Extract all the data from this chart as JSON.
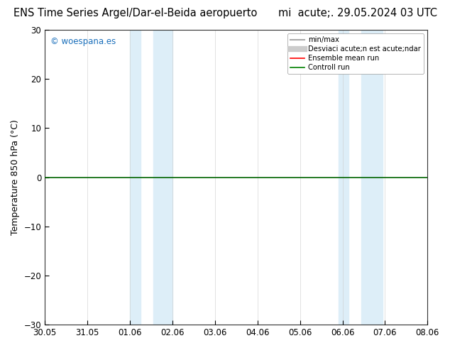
{
  "title": "ENS Time Series Argel/Dar-el-Beida aeropuerto",
  "subtitle": "mi  acute;. 29.05.2024 03 UTC",
  "ylabel": "Temperature 850 hPa (°C)",
  "xlabels": [
    "30.05",
    "31.05",
    "01.06",
    "02.06",
    "03.06",
    "04.06",
    "05.06",
    "06.06",
    "07.06",
    "08.06"
  ],
  "ylim": [
    -30,
    30
  ],
  "yticks": [
    -30,
    -20,
    -10,
    0,
    10,
    20,
    30
  ],
  "shaded_regions": [
    {
      "xstart": 2.0,
      "xend": 2.25,
      "color": "#ddeef8"
    },
    {
      "xstart": 2.55,
      "xend": 3.0,
      "color": "#ddeef8"
    },
    {
      "xstart": 6.9,
      "xend": 7.15,
      "color": "#ddeef8"
    },
    {
      "xstart": 7.45,
      "xend": 7.95,
      "color": "#ddeef8"
    }
  ],
  "hline_y": 0,
  "hline_color": "#006400",
  "hline_lw": 1.2,
  "watermark": "© woespana.es",
  "watermark_color": "#1a6fbb",
  "legend_entries": [
    {
      "label": "min/max",
      "color": "#aaaaaa",
      "lw": 1.5
    },
    {
      "label": "Desviaci acute;n est acute;ndar",
      "color": "#cccccc",
      "lw": 6
    },
    {
      "label": "Ensemble mean run",
      "color": "red",
      "lw": 1.2
    },
    {
      "label": "Controll run",
      "color": "green",
      "lw": 1.2
    }
  ],
  "bg_color": "#ffffff",
  "title_fontsize": 10.5,
  "label_fontsize": 9,
  "tick_fontsize": 8.5,
  "num_xticks": 10
}
